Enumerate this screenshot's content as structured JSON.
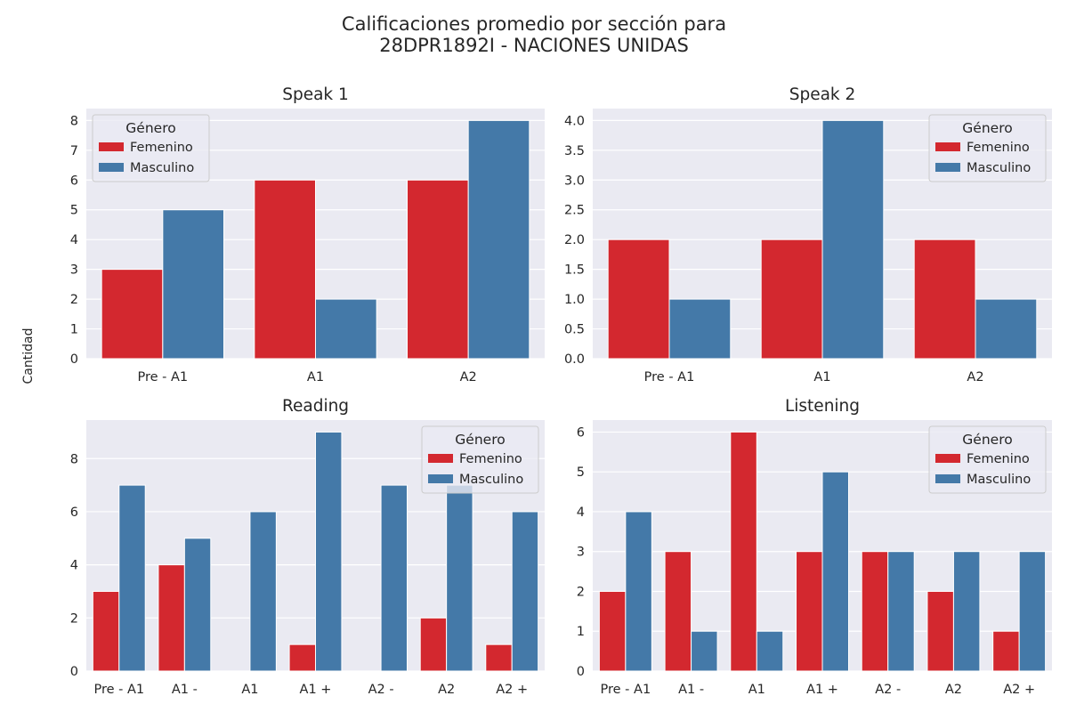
{
  "figure": {
    "title_line1": "Calificaciones promedio por sección para",
    "title_line2": "28DPR1892I - NACIONES UNIDAS",
    "ylabel": "Cantidad"
  },
  "colors": {
    "Femenino": "#d3282f",
    "Masculino": "#4479a8",
    "axes_bg": "#eaeaf2",
    "grid": "#ffffff"
  },
  "chart_data": [
    {
      "type": "bar",
      "title": "Speak 1",
      "categories": [
        "Pre - A1",
        "A1",
        "A2"
      ],
      "series": [
        {
          "name": "Femenino",
          "values": [
            3,
            6,
            6
          ]
        },
        {
          "name": "Masculino",
          "values": [
            5,
            2,
            8
          ]
        }
      ],
      "ylim": [
        0,
        8.4
      ],
      "yticks": [
        0,
        1,
        2,
        3,
        4,
        5,
        6,
        7,
        8
      ],
      "ytick_labels": [
        "0",
        "1",
        "2",
        "3",
        "4",
        "5",
        "6",
        "7",
        "8"
      ],
      "legend": {
        "title": "Género",
        "placement": "top-left"
      },
      "grid": true
    },
    {
      "type": "bar",
      "title": "Speak 2",
      "categories": [
        "Pre - A1",
        "A1",
        "A2"
      ],
      "series": [
        {
          "name": "Femenino",
          "values": [
            2,
            2,
            2
          ]
        },
        {
          "name": "Masculino",
          "values": [
            1,
            4,
            1
          ]
        }
      ],
      "ylim": [
        0,
        4.2
      ],
      "yticks": [
        0,
        0.5,
        1,
        1.5,
        2,
        2.5,
        3,
        3.5,
        4
      ],
      "ytick_labels": [
        "0.0",
        "0.5",
        "1.0",
        "1.5",
        "2.0",
        "2.5",
        "3.0",
        "3.5",
        "4.0"
      ],
      "legend": {
        "title": "Género",
        "placement": "top-right"
      },
      "grid": true
    },
    {
      "type": "bar",
      "title": "Reading",
      "categories": [
        "Pre - A1",
        "A1 -",
        "A1",
        "A1 +",
        "A2 -",
        "A2",
        "A2 +"
      ],
      "series": [
        {
          "name": "Femenino",
          "values": [
            3,
            4,
            0,
            1,
            0,
            2,
            1
          ]
        },
        {
          "name": "Masculino",
          "values": [
            7,
            5,
            6,
            9,
            7,
            7,
            6
          ]
        }
      ],
      "ylim": [
        0,
        9.45
      ],
      "yticks": [
        0,
        2,
        4,
        6,
        8
      ],
      "ytick_labels": [
        "0",
        "2",
        "4",
        "6",
        "8"
      ],
      "legend": {
        "title": "Género",
        "placement": "top-right"
      },
      "grid": true
    },
    {
      "type": "bar",
      "title": "Listening",
      "categories": [
        "Pre - A1",
        "A1 -",
        "A1",
        "A1 +",
        "A2 -",
        "A2",
        "A2 +"
      ],
      "series": [
        {
          "name": "Femenino",
          "values": [
            2,
            3,
            6,
            3,
            3,
            2,
            1
          ]
        },
        {
          "name": "Masculino",
          "values": [
            4,
            1,
            1,
            5,
            3,
            3,
            3
          ]
        }
      ],
      "ylim": [
        0,
        6.3
      ],
      "yticks": [
        0,
        1,
        2,
        3,
        4,
        5,
        6
      ],
      "ytick_labels": [
        "0",
        "1",
        "2",
        "3",
        "4",
        "5",
        "6"
      ],
      "legend": {
        "title": "Género",
        "placement": "top-right"
      },
      "grid": true
    }
  ]
}
